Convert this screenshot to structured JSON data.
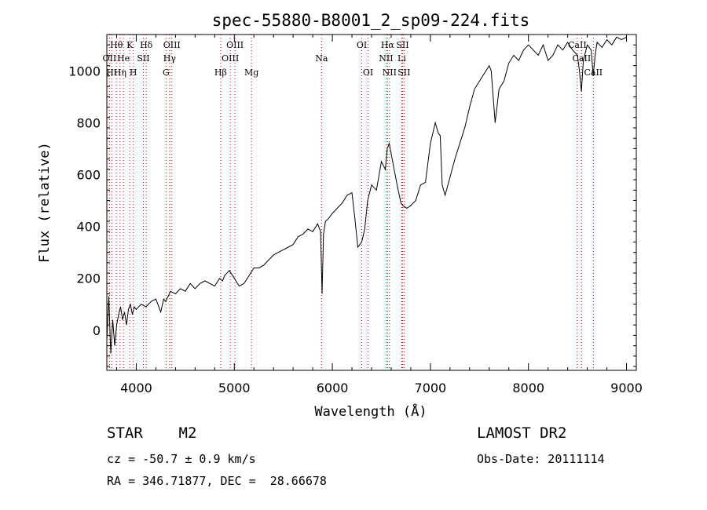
{
  "chart_data": {
    "type": "line",
    "title": "spec-55880-B8001_2_sp09-224.fits",
    "xlabel": "Wavelength (Å)",
    "ylabel": "Flux (relative)",
    "xlim": [
      3700,
      9100
    ],
    "ylim": [
      -155,
      1140
    ],
    "x_ticks": [
      4000,
      5000,
      6000,
      7000,
      8000,
      9000
    ],
    "y_ticks": [
      0,
      200,
      400,
      600,
      800,
      1000
    ],
    "grid": false,
    "line_color": "#000000",
    "line_marker_color": "#cc0000",
    "series": [
      {
        "x": [
          3700,
          3720,
          3740,
          3760,
          3780,
          3800,
          3820,
          3840,
          3860,
          3880,
          3900,
          3920,
          3940,
          3960,
          3980,
          4000,
          4050,
          4100,
          4150,
          4200,
          4250,
          4280,
          4300,
          4350,
          4400,
          4450,
          4500,
          4550,
          4600,
          4650,
          4700,
          4750,
          4800,
          4850,
          4880,
          4900,
          4950,
          5000,
          5050,
          5100,
          5150,
          5200,
          5250,
          5300,
          5350,
          5400,
          5450,
          5500,
          5550,
          5600,
          5650,
          5700,
          5750,
          5800,
          5850,
          5880,
          5895,
          5910,
          5930,
          5960,
          6000,
          6050,
          6100,
          6150,
          6200,
          6230,
          6260,
          6300,
          6330,
          6360,
          6400,
          6450,
          6500,
          6540,
          6560,
          6580,
          6620,
          6660,
          6700,
          6720,
          6760,
          6800,
          6850,
          6900,
          6950,
          7000,
          7050,
          7080,
          7100,
          7120,
          7150,
          7200,
          7250,
          7300,
          7350,
          7400,
          7450,
          7500,
          7550,
          7600,
          7620,
          7640,
          7660,
          7700,
          7750,
          7800,
          7850,
          7900,
          7950,
          8000,
          8050,
          8100,
          8150,
          8200,
          8250,
          8300,
          8350,
          8400,
          8450,
          8500,
          8520,
          8540,
          8560,
          8600,
          8640,
          8660,
          8680,
          8700,
          8750,
          8800,
          8850,
          8900,
          8950,
          9000
        ],
        "y": [
          -40,
          130,
          -90,
          40,
          -60,
          20,
          60,
          90,
          40,
          70,
          20,
          80,
          100,
          60,
          90,
          80,
          100,
          90,
          110,
          120,
          70,
          120,
          110,
          150,
          140,
          160,
          150,
          180,
          160,
          180,
          190,
          180,
          170,
          200,
          190,
          210,
          230,
          200,
          170,
          180,
          210,
          240,
          240,
          250,
          270,
          290,
          300,
          310,
          320,
          330,
          360,
          370,
          390,
          380,
          410,
          380,
          140,
          370,
          420,
          430,
          450,
          470,
          490,
          520,
          530,
          430,
          320,
          340,
          390,
          500,
          560,
          540,
          650,
          620,
          700,
          720,
          640,
          560,
          490,
          480,
          470,
          480,
          500,
          560,
          570,
          720,
          800,
          760,
          750,
          560,
          520,
          590,
          660,
          720,
          780,
          860,
          930,
          960,
          990,
          1020,
          1000,
          900,
          800,
          930,
          960,
          1030,
          1060,
          1040,
          1080,
          1100,
          1080,
          1060,
          1100,
          1040,
          1060,
          1100,
          1080,
          1110,
          1080,
          1060,
          1000,
          920,
          1040,
          1100,
          1080,
          980,
          1060,
          1110,
          1090,
          1120,
          1100,
          1130,
          1120,
          1130
        ]
      }
    ],
    "lines": [
      {
        "wave": 3798,
        "label": "Hθ",
        "row": 0,
        "color": "#000000"
      },
      {
        "wave": 3934,
        "label": "K",
        "row": 0,
        "color": "#000000"
      },
      {
        "wave": 4102,
        "label": "Hδ",
        "row": 0,
        "color": "#000000"
      },
      {
        "wave": 4363,
        "label": "OIII",
        "row": 0,
        "color": "#000000"
      },
      {
        "wave": 5007,
        "label": "OIII",
        "row": 0,
        "color": "#000000"
      },
      {
        "wave": 6300,
        "label": "OI",
        "row": 0,
        "color": "#000000"
      },
      {
        "wave": 6563,
        "label": "Hα",
        "row": 0,
        "color": "#000000"
      },
      {
        "wave": 6716,
        "label": "SII",
        "row": 0,
        "color": "#000000"
      },
      {
        "wave": 8498,
        "label": "CaII",
        "row": 0,
        "color": "#000000"
      },
      {
        "wave": 3727,
        "label": "OII",
        "row": 1,
        "color": "#000000"
      },
      {
        "wave": 3869,
        "label": "He",
        "row": 1,
        "color": "#000000"
      },
      {
        "wave": 4072,
        "label": "SII",
        "row": 1,
        "color": "#000000"
      },
      {
        "wave": 4340,
        "label": "Hγ",
        "row": 1,
        "color": "#000000"
      },
      {
        "wave": 4959,
        "label": "OIII",
        "row": 1,
        "color": "#000000"
      },
      {
        "wave": 5890,
        "label": "Na",
        "row": 1,
        "color": "#000000"
      },
      {
        "wave": 6548,
        "label": "NII",
        "row": 1,
        "color": "#000000"
      },
      {
        "wave": 6708,
        "label": "Li",
        "row": 1,
        "color": "#000000"
      },
      {
        "wave": 8542,
        "label": "CaII",
        "row": 1,
        "color": "#000000"
      },
      {
        "wave": 3750,
        "label": "Hι",
        "row": 2,
        "color": "#000000"
      },
      {
        "wave": 3835,
        "label": "Hη",
        "row": 2,
        "color": "#000000"
      },
      {
        "wave": 3970,
        "label": "H",
        "row": 2,
        "color": "#000000"
      },
      {
        "wave": 4304,
        "label": "G",
        "row": 2,
        "color": "#000000"
      },
      {
        "wave": 4861,
        "label": "Hβ",
        "row": 2,
        "color": "#000000"
      },
      {
        "wave": 5175,
        "label": "Mg",
        "row": 2,
        "color": "#000000"
      },
      {
        "wave": 6364,
        "label": "OI",
        "row": 2,
        "color": "#000000"
      },
      {
        "wave": 6583,
        "label": "NII",
        "row": 2,
        "color": "#000000"
      },
      {
        "wave": 6731,
        "label": "SII",
        "row": 2,
        "color": "#000000"
      },
      {
        "wave": 8662,
        "label": "CaII",
        "row": 2,
        "color": "#000000"
      }
    ]
  },
  "info": {
    "class_line": "STAR    M2",
    "cz_line": "cz = -50.7 ± 0.9 km/s",
    "radec_line": "RA = 346.71877, DEC =  28.66678",
    "survey": "LAMOST DR2",
    "obs_date": "Obs-Date: 20111114"
  }
}
